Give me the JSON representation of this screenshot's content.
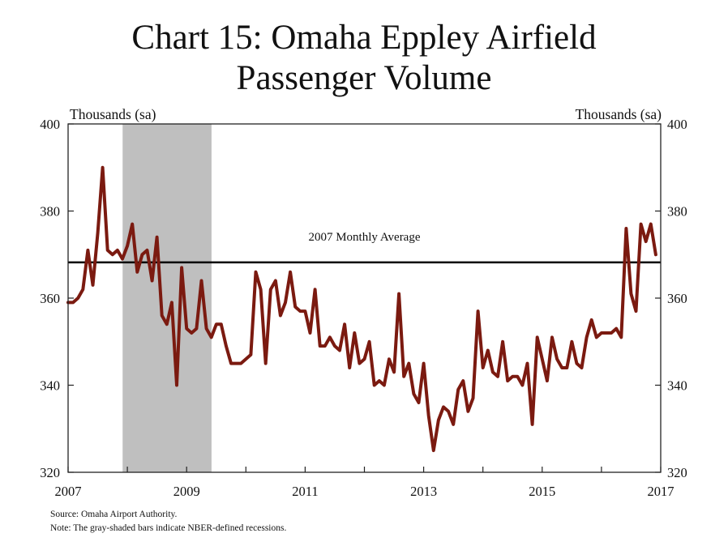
{
  "title_line1": "Chart 15: Omaha Eppley Airfield",
  "title_line2": "Passenger Volume",
  "source": "Source: Omaha Airport Authority.",
  "note": "Note: The gray-shaded bars indicate NBER-defined recessions.",
  "chart_data": {
    "type": "line",
    "left_unit_label": "Thousands (sa)",
    "right_unit_label": "Thousands (sa)",
    "ylim": [
      320,
      400
    ],
    "yticks": [
      320,
      340,
      360,
      380,
      400
    ],
    "xlim": [
      2007,
      2017
    ],
    "xticks": [
      2007,
      2009,
      2011,
      2013,
      2015,
      2017
    ],
    "grid": false,
    "recession": {
      "start": 2007.92,
      "end": 2009.42,
      "color": "#bfbfbf"
    },
    "reference_line": {
      "label": "2007 Monthly Average",
      "value": 368.2,
      "color": "#000000"
    },
    "series": [
      {
        "color": "#7b1a10",
        "start": 2007.0,
        "step_months": 1,
        "values": [
          359,
          359,
          360,
          362,
          371,
          363,
          375,
          390,
          371,
          370,
          371,
          369,
          372,
          377,
          366,
          370,
          371,
          364,
          374,
          356,
          354,
          359,
          340,
          367,
          353,
          352,
          353,
          364,
          353,
          351,
          354,
          354,
          349,
          345,
          345,
          345,
          346,
          347,
          366,
          362,
          345,
          362,
          364,
          356,
          359,
          366,
          358,
          357,
          357,
          352,
          362,
          349,
          349,
          351,
          349,
          348,
          354,
          344,
          352,
          345,
          346,
          350,
          340,
          341,
          340,
          346,
          343,
          361,
          342,
          345,
          338,
          336,
          345,
          333,
          325,
          332,
          335,
          334,
          331,
          339,
          341,
          334,
          337,
          357,
          344,
          348,
          343,
          342,
          350,
          341,
          342,
          342,
          340,
          345,
          331,
          351,
          346,
          341,
          351,
          346,
          344,
          344,
          350,
          345,
          344,
          351,
          355,
          351,
          352,
          352,
          352,
          353,
          351,
          376,
          361,
          357,
          377,
          373,
          377,
          370
        ]
      }
    ]
  }
}
